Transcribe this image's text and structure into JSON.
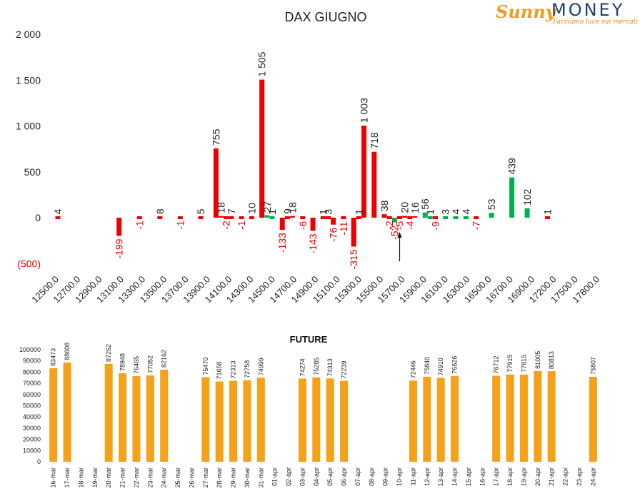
{
  "logo": {
    "sunny": "Sunny",
    "money": "MONEY",
    "tagline": "Facciamo luce sui mercati"
  },
  "chart_data": [
    {
      "type": "bar",
      "title": "DAX GIUGNO",
      "ylim": [
        -500,
        2000
      ],
      "yticks": [
        "2 000",
        "1 500",
        "1 000",
        "500",
        "0",
        "(500)"
      ],
      "ytick_values": [
        2000,
        1500,
        1000,
        500,
        0,
        -500
      ],
      "grid": false,
      "categories": [
        "12500.0",
        "12700.0",
        "12900.0",
        "13100.0",
        "13300.0",
        "13500.0",
        "13700.0",
        "13900.0",
        "14100.0",
        "14300.0",
        "14500.0",
        "14700.0",
        "14900.0",
        "15100.0",
        "15300.0",
        "15500.0",
        "15700.0",
        "15900.0",
        "16100.0",
        "16300.0",
        "16500.0",
        "16700.0",
        "16900.0",
        "17200.0",
        "17500.0",
        "17800.0"
      ],
      "colors": {
        "positive": "#00b050",
        "negative": "#ee0000",
        "label_negative": "#ee0000",
        "label_positive": "#222222"
      },
      "bars": [
        {
          "x": 12500,
          "value": 4,
          "label": "4",
          "color": "red"
        },
        {
          "x": 13100,
          "value": -199,
          "label": "-199",
          "color": "red"
        },
        {
          "x": 13300,
          "value": -1,
          "label": "-1",
          "color": "red"
        },
        {
          "x": 13500,
          "value": 8,
          "label": "8",
          "color": "red"
        },
        {
          "x": 13700,
          "value": -1,
          "label": "-1",
          "color": "red"
        },
        {
          "x": 13900,
          "value": 5,
          "label": "5",
          "color": "red"
        },
        {
          "x": 14050,
          "value": 755,
          "label": "755",
          "color": "red"
        },
        {
          "x": 14100,
          "value": 18,
          "label": "18",
          "color": "red"
        },
        {
          "x": 14150,
          "value": -2,
          "label": "-2",
          "color": "red"
        },
        {
          "x": 14200,
          "value": 7,
          "label": "7",
          "color": "red"
        },
        {
          "x": 14300,
          "value": -1,
          "label": "-1",
          "color": "red"
        },
        {
          "x": 14400,
          "value": 10,
          "label": "10",
          "color": "red"
        },
        {
          "x": 14500,
          "value": 1505,
          "label": "1 505",
          "color": "red"
        },
        {
          "x": 14550,
          "value": 27,
          "label": "27",
          "color": "green"
        },
        {
          "x": 14600,
          "value": 1,
          "label": "1",
          "color": "green"
        },
        {
          "x": 14700,
          "value": -133,
          "label": "-133",
          "color": "red"
        },
        {
          "x": 14750,
          "value": 9,
          "label": "9",
          "color": "red"
        },
        {
          "x": 14800,
          "value": 18,
          "label": "18",
          "color": "red"
        },
        {
          "x": 14900,
          "value": -6,
          "label": "-6",
          "color": "red"
        },
        {
          "x": 15000,
          "value": -143,
          "label": "-143",
          "color": "red"
        },
        {
          "x": 15100,
          "value": 1,
          "label": "1",
          "color": "red"
        },
        {
          "x": 15150,
          "value": 3,
          "label": "3",
          "color": "red"
        },
        {
          "x": 15200,
          "value": -76,
          "label": "-76",
          "color": "red"
        },
        {
          "x": 15300,
          "value": -11,
          "label": "-11",
          "color": "red"
        },
        {
          "x": 15400,
          "value": -315,
          "label": "-315",
          "color": "red"
        },
        {
          "x": 15450,
          "value": 1,
          "label": "1",
          "color": "red"
        },
        {
          "x": 15500,
          "value": 1003,
          "label": "1 003",
          "color": "red"
        },
        {
          "x": 15600,
          "value": 718,
          "label": "718",
          "color": "red"
        },
        {
          "x": 15700,
          "value": 38,
          "label": "38",
          "color": "red"
        },
        {
          "x": 15750,
          "value": -2,
          "label": "-2",
          "color": "red"
        },
        {
          "x": 15800,
          "value": -52,
          "label": "-52",
          "color": "green"
        },
        {
          "x": 15850,
          "value": -5,
          "label": "-5",
          "color": "red"
        },
        {
          "x": 15900,
          "value": 20,
          "label": "20",
          "color": "red"
        },
        {
          "x": 15950,
          "value": -4,
          "label": "-4",
          "color": "red"
        },
        {
          "x": 16000,
          "value": 16,
          "label": "16",
          "color": "red"
        },
        {
          "x": 16100,
          "value": 56,
          "label": "56",
          "color": "green"
        },
        {
          "x": 16150,
          "value": 1,
          "label": "1",
          "color": "green"
        },
        {
          "x": 16200,
          "value": -9,
          "label": "-9",
          "color": "red"
        },
        {
          "x": 16300,
          "value": 3,
          "label": "3",
          "color": "green"
        },
        {
          "x": 16400,
          "value": 4,
          "label": "4",
          "color": "green"
        },
        {
          "x": 16500,
          "value": 4,
          "label": "4",
          "color": "green"
        },
        {
          "x": 16600,
          "value": -7,
          "label": "-7",
          "color": "red"
        },
        {
          "x": 16750,
          "value": 53,
          "label": "53",
          "color": "green"
        },
        {
          "x": 16950,
          "value": 439,
          "label": "439",
          "color": "green"
        },
        {
          "x": 17100,
          "value": 102,
          "label": "102",
          "color": "green"
        },
        {
          "x": 17300,
          "value": 1,
          "label": "1",
          "color": "red"
        }
      ],
      "marker_arrow_at": 15850
    },
    {
      "type": "bar",
      "title": "FUTURE",
      "ylim": [
        0,
        100000
      ],
      "yticks": [
        "100000",
        "90000",
        "80000",
        "70000",
        "60000",
        "50000",
        "40000",
        "30000",
        "20000",
        "10000",
        "0"
      ],
      "ytick_values": [
        100000,
        90000,
        80000,
        70000,
        60000,
        50000,
        40000,
        30000,
        20000,
        10000,
        0
      ],
      "color": "#f5a11a",
      "categories": [
        "16-mar",
        "17-mar",
        "18-mar",
        "19-mar",
        "20-mar",
        "21-mar",
        "22-mar",
        "23-mar",
        "24-mar",
        "25-mar",
        "26-mar",
        "27-mar",
        "28-mar",
        "29-mar",
        "30-mar",
        "31-mar",
        "01-apr",
        "02-apr",
        "03-apr",
        "04-apr",
        "05-apr",
        "06-apr",
        "07-apr",
        "08-apr",
        "09-apr",
        "10-apr",
        "11-apr",
        "12-apr",
        "13-apr",
        "14-apr",
        "15-apr",
        "16-apr",
        "17-apr",
        "18-apr",
        "19-apr",
        "20-apr",
        "21-apr",
        "22-apr",
        "23-apr",
        "24-apr"
      ],
      "values": [
        83473,
        88608,
        null,
        null,
        87262,
        78948,
        76465,
        77052,
        82162,
        null,
        null,
        75470,
        71658,
        72313,
        72758,
        74999,
        null,
        null,
        74274,
        75285,
        74313,
        72239,
        null,
        null,
        null,
        null,
        72446,
        75840,
        74910,
        76626,
        null,
        null,
        76712,
        77915,
        77815,
        81005,
        80813,
        null,
        null,
        75807
      ]
    }
  ]
}
